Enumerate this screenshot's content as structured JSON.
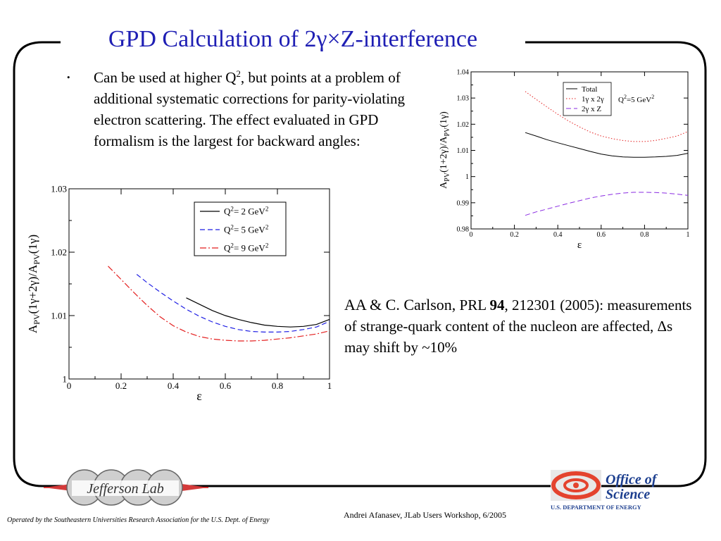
{
  "slide": {
    "title": "GPD Calculation of 2γ×Z-interference",
    "bullet": {
      "marker": ".",
      "text_before_sup": "Can be used at higher Q",
      "sup": "2",
      "text_after_sup": ", but points at a problem of additional systematic corrections for parity-violating electron scattering. The effect evaluated in GPD formalism is the largest for backward angles:"
    },
    "citation": {
      "authors": "AA & C. Carlson,",
      "journal": "PRL",
      "volume": "94",
      "pages_year": ", 212301 (2005):",
      "rest": "measurements of strange-quark content of the nucleon are affected, Δs may shift by ~10%"
    },
    "credit": "Andrei Afanasev, JLab Users Workshop, 6/2005",
    "operated_by": "Operated by the Southeastern Universities Research Association for the U.S. Dept. of Energy",
    "logos": {
      "left": "Jefferson Lab",
      "right_line1": "Office of",
      "right_line2": "Science",
      "right_line3": "U.S. DEPARTMENT OF ENERGY"
    },
    "colors": {
      "title": "#1f1fb4",
      "red": "#e41f1f",
      "blue": "#1f1fe4",
      "purple": "#8a2be2",
      "science_blue": "#1d3f8f"
    }
  },
  "chart_data": [
    {
      "type": "line",
      "xlabel": "ε",
      "ylabel": "A_PV(1γ+2γ)/A_PV(1γ)",
      "xlim": [
        0,
        1
      ],
      "ylim": [
        1,
        1.03
      ],
      "xticks": [
        "0",
        "0.2",
        "0.4",
        "0.6",
        "0.8",
        "1"
      ],
      "yticks": [
        "1",
        "1.01",
        "1.02",
        "1.03"
      ],
      "legend_position": "top-right",
      "series": [
        {
          "name": "Q²= 2 GeV²",
          "color": "#000000",
          "dash": "solid",
          "x": [
            0.45,
            0.5,
            0.55,
            0.6,
            0.65,
            0.7,
            0.75,
            0.8,
            0.85,
            0.9,
            0.95,
            1.0
          ],
          "y": [
            1.0128,
            1.0118,
            1.0108,
            1.01,
            1.0094,
            1.0089,
            1.0085,
            1.0083,
            1.0082,
            1.0083,
            1.0086,
            1.0094
          ]
        },
        {
          "name": "Q²= 5 GeV²",
          "color": "#1f1fe4",
          "dash": "dashed",
          "x": [
            0.26,
            0.3,
            0.35,
            0.4,
            0.45,
            0.5,
            0.55,
            0.6,
            0.65,
            0.7,
            0.75,
            0.8,
            0.85,
            0.9,
            0.95,
            1.0
          ],
          "y": [
            1.0165,
            1.0152,
            1.0137,
            1.0123,
            1.011,
            1.0099,
            1.009,
            1.0083,
            1.0078,
            1.0075,
            1.0074,
            1.0074,
            1.0075,
            1.0078,
            1.0082,
            1.0091
          ]
        },
        {
          "name": "Q²= 9 GeV²",
          "color": "#e41f1f",
          "dash": "dashdot",
          "x": [
            0.15,
            0.2,
            0.25,
            0.3,
            0.35,
            0.4,
            0.45,
            0.5,
            0.55,
            0.6,
            0.65,
            0.7,
            0.75,
            0.8,
            0.85,
            0.9,
            0.95,
            1.0
          ],
          "y": [
            1.0178,
            1.0157,
            1.0136,
            1.0116,
            1.0098,
            1.0084,
            1.0074,
            1.0067,
            1.0063,
            1.0061,
            1.006,
            1.006,
            1.0061,
            1.0063,
            1.0065,
            1.0068,
            1.0071,
            1.0076
          ]
        }
      ]
    },
    {
      "type": "line",
      "xlabel": "ε",
      "ylabel": "A_PV(1+2γ)/A_PV(1γ)",
      "xlim": [
        0,
        1
      ],
      "ylim": [
        0.98,
        1.04
      ],
      "xticks": [
        "0",
        "0.2",
        "0.4",
        "0.6",
        "0.8",
        "1"
      ],
      "yticks": [
        "0.98",
        "0.99",
        "1",
        "1.01",
        "1.02",
        "1.03",
        "1.04"
      ],
      "annotation": "Q²=5 GeV²",
      "legend_position": "top-right",
      "series": [
        {
          "name": "Total",
          "color": "#000000",
          "dash": "solid",
          "x": [
            0.25,
            0.3,
            0.35,
            0.4,
            0.45,
            0.5,
            0.55,
            0.6,
            0.65,
            0.7,
            0.75,
            0.8,
            0.85,
            0.9,
            0.95,
            1.0
          ],
          "y": [
            1.0168,
            1.0155,
            1.0141,
            1.0129,
            1.0118,
            1.0107,
            1.0096,
            1.0086,
            1.0079,
            1.0075,
            1.0074,
            1.0074,
            1.0075,
            1.0077,
            1.0081,
            1.0089
          ]
        },
        {
          "name": "1γ x 2γ",
          "color": "#e41f1f",
          "dash": "dotted",
          "x": [
            0.25,
            0.3,
            0.35,
            0.4,
            0.45,
            0.5,
            0.55,
            0.6,
            0.65,
            0.7,
            0.75,
            0.8,
            0.85,
            0.9,
            0.95,
            1.0
          ],
          "y": [
            1.0325,
            1.0295,
            1.0266,
            1.0238,
            1.0212,
            1.019,
            1.017,
            1.0155,
            1.0145,
            1.0138,
            1.0134,
            1.0134,
            1.0138,
            1.0146,
            1.0155,
            1.0172
          ]
        },
        {
          "name": "2γ x Z",
          "color": "#8a2be2",
          "dash": "dashed",
          "x": [
            0.25,
            0.3,
            0.35,
            0.4,
            0.45,
            0.5,
            0.55,
            0.6,
            0.65,
            0.7,
            0.75,
            0.8,
            0.85,
            0.9,
            0.95,
            1.0
          ],
          "y": [
            0.9852,
            0.9865,
            0.9876,
            0.9887,
            0.9898,
            0.9908,
            0.9918,
            0.9926,
            0.9932,
            0.9937,
            0.994,
            0.994,
            0.9939,
            0.9937,
            0.9933,
            0.9928
          ]
        }
      ]
    }
  ]
}
